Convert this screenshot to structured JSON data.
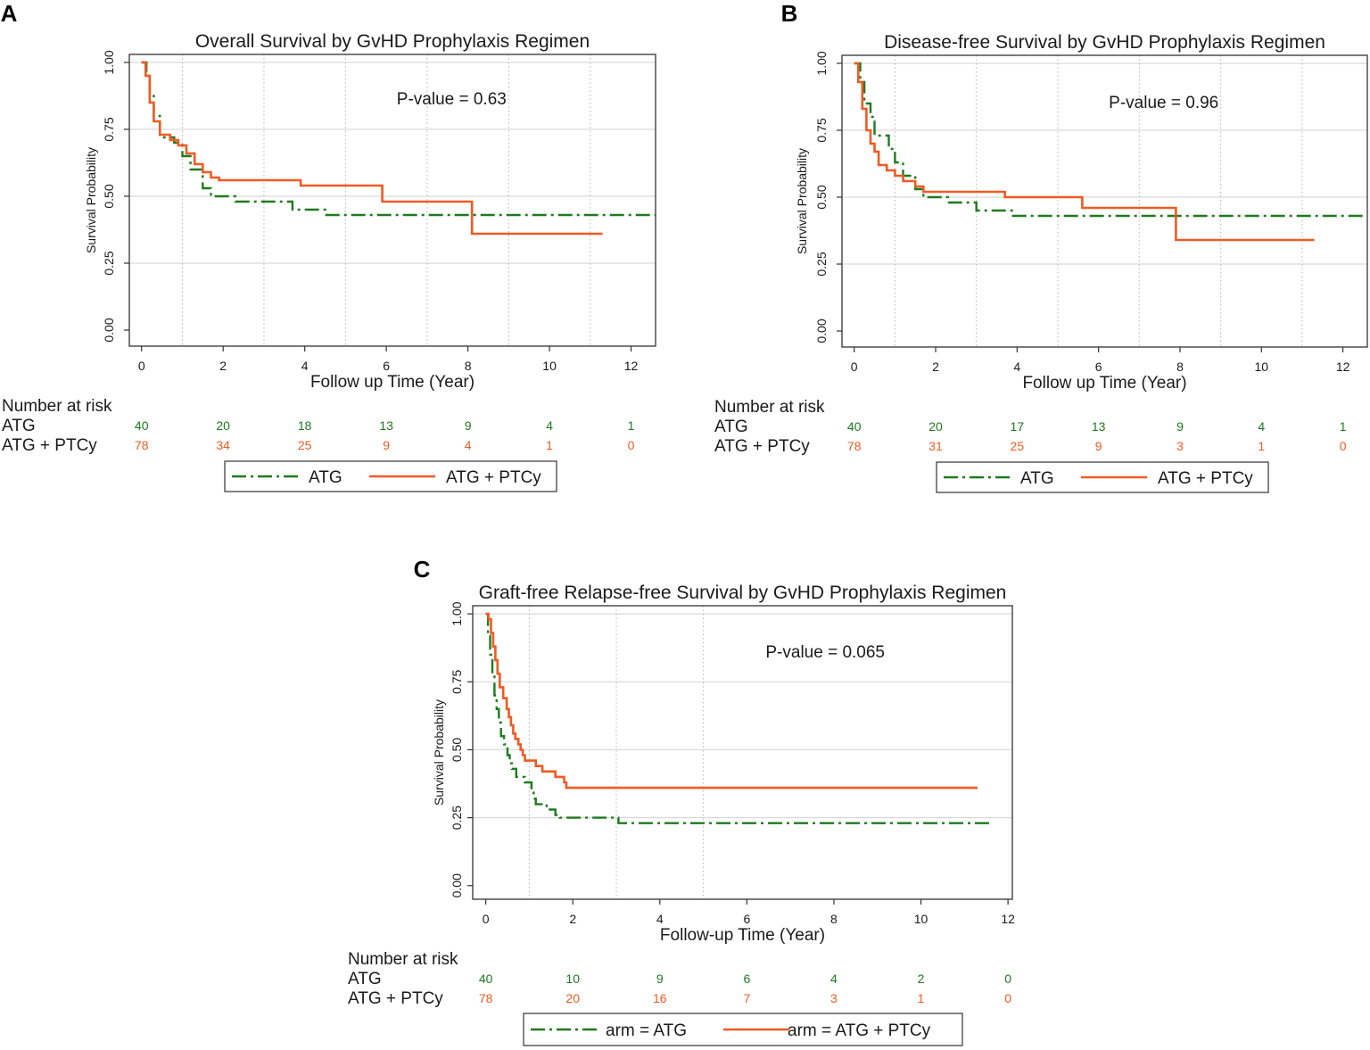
{
  "colors": {
    "atg": "#1e7a1e",
    "ptcy": "#f05a22",
    "grid": "#d9d9d9",
    "text": "#1a1a1a"
  },
  "risk_header": "Number at risk",
  "chart_data": [
    {
      "panel_label": "A",
      "type": "line",
      "title": "Overall Survival by GvHD Prophylaxis Regimen",
      "xlabel": "Follow up Time (Year)",
      "ylabel": "Survival Probability",
      "annotation": "P-value = 0.63",
      "xlim": [
        -0.3,
        12.6
      ],
      "ylim": [
        -0.06,
        1.03
      ],
      "xticks": [
        0,
        2,
        4,
        6,
        8,
        10,
        12
      ],
      "yticks": [
        0,
        0.25,
        0.5,
        0.75,
        1
      ],
      "ytick_labels": [
        "0.00",
        "0.25",
        "0.50",
        "0.75",
        "1.00"
      ],
      "vgrid": [
        1,
        3,
        5,
        7,
        9,
        11
      ],
      "series": [
        {
          "name": "ATG",
          "legend": "ATG",
          "style": "dashdot",
          "points": [
            [
              0,
              1
            ],
            [
              0.12,
              1
            ],
            [
              0.12,
              0.95
            ],
            [
              0.2,
              0.95
            ],
            [
              0.2,
              0.88
            ],
            [
              0.3,
              0.88
            ],
            [
              0.3,
              0.8
            ],
            [
              0.45,
              0.8
            ],
            [
              0.45,
              0.72
            ],
            [
              0.8,
              0.72
            ],
            [
              0.8,
              0.7
            ],
            [
              1.0,
              0.7
            ],
            [
              1.0,
              0.65
            ],
            [
              1.2,
              0.65
            ],
            [
              1.2,
              0.6
            ],
            [
              1.5,
              0.6
            ],
            [
              1.5,
              0.53
            ],
            [
              1.7,
              0.53
            ],
            [
              1.7,
              0.5
            ],
            [
              2.3,
              0.5
            ],
            [
              2.3,
              0.48
            ],
            [
              3.7,
              0.48
            ],
            [
              3.7,
              0.45
            ],
            [
              4.5,
              0.45
            ],
            [
              4.5,
              0.43
            ],
            [
              12.6,
              0.43
            ]
          ],
          "risk": [
            40,
            20,
            18,
            13,
            9,
            4,
            1
          ]
        },
        {
          "name": "ATG + PTCy",
          "legend": "ATG + PTCy",
          "style": "solid",
          "points": [
            [
              0,
              1
            ],
            [
              0.1,
              1
            ],
            [
              0.1,
              0.95
            ],
            [
              0.2,
              0.95
            ],
            [
              0.2,
              0.85
            ],
            [
              0.3,
              0.85
            ],
            [
              0.3,
              0.78
            ],
            [
              0.45,
              0.78
            ],
            [
              0.45,
              0.73
            ],
            [
              0.7,
              0.73
            ],
            [
              0.7,
              0.71
            ],
            [
              0.9,
              0.71
            ],
            [
              0.9,
              0.69
            ],
            [
              1.1,
              0.69
            ],
            [
              1.1,
              0.66
            ],
            [
              1.3,
              0.66
            ],
            [
              1.3,
              0.62
            ],
            [
              1.5,
              0.62
            ],
            [
              1.5,
              0.59
            ],
            [
              1.7,
              0.59
            ],
            [
              1.7,
              0.57
            ],
            [
              1.9,
              0.57
            ],
            [
              1.9,
              0.56
            ],
            [
              3.9,
              0.56
            ],
            [
              3.9,
              0.54
            ],
            [
              5.9,
              0.54
            ],
            [
              5.9,
              0.48
            ],
            [
              8.1,
              0.48
            ],
            [
              8.1,
              0.36
            ],
            [
              11.3,
              0.36
            ]
          ],
          "risk": [
            78,
            34,
            25,
            9,
            4,
            1,
            0
          ]
        }
      ]
    },
    {
      "panel_label": "B",
      "type": "line",
      "title": "Disease-free Survival by GvHD Prophylaxis Regimen",
      "xlabel": "Follow up Time (Year)",
      "ylabel": "Survival Probability",
      "annotation": "P-value = 0.96",
      "xlim": [
        -0.3,
        12.6
      ],
      "ylim": [
        -0.06,
        1.03
      ],
      "xticks": [
        0,
        2,
        4,
        6,
        8,
        10,
        12
      ],
      "yticks": [
        0,
        0.25,
        0.5,
        0.75,
        1
      ],
      "ytick_labels": [
        "0.00",
        "0.25",
        "0.50",
        "0.75",
        "1.00"
      ],
      "vgrid": [
        1,
        3,
        5,
        7,
        9,
        11
      ],
      "series": [
        {
          "name": "ATG",
          "legend": "ATG",
          "style": "dashdot",
          "points": [
            [
              0,
              1
            ],
            [
              0.15,
              1
            ],
            [
              0.15,
              0.93
            ],
            [
              0.25,
              0.93
            ],
            [
              0.25,
              0.85
            ],
            [
              0.4,
              0.85
            ],
            [
              0.4,
              0.8
            ],
            [
              0.5,
              0.8
            ],
            [
              0.5,
              0.73
            ],
            [
              0.85,
              0.73
            ],
            [
              0.85,
              0.68
            ],
            [
              1.0,
              0.68
            ],
            [
              1.0,
              0.63
            ],
            [
              1.2,
              0.63
            ],
            [
              1.2,
              0.58
            ],
            [
              1.5,
              0.58
            ],
            [
              1.5,
              0.53
            ],
            [
              1.7,
              0.53
            ],
            [
              1.7,
              0.5
            ],
            [
              2.3,
              0.5
            ],
            [
              2.3,
              0.48
            ],
            [
              3.0,
              0.48
            ],
            [
              3.0,
              0.45
            ],
            [
              3.9,
              0.45
            ],
            [
              3.9,
              0.43
            ],
            [
              12.6,
              0.43
            ]
          ],
          "risk": [
            40,
            20,
            17,
            13,
            9,
            4,
            1
          ]
        },
        {
          "name": "ATG + PTCy",
          "legend": "ATG + PTCy",
          "style": "solid",
          "points": [
            [
              0,
              1
            ],
            [
              0.1,
              1
            ],
            [
              0.1,
              0.93
            ],
            [
              0.2,
              0.93
            ],
            [
              0.2,
              0.83
            ],
            [
              0.3,
              0.83
            ],
            [
              0.3,
              0.75
            ],
            [
              0.4,
              0.75
            ],
            [
              0.4,
              0.7
            ],
            [
              0.5,
              0.7
            ],
            [
              0.5,
              0.67
            ],
            [
              0.6,
              0.67
            ],
            [
              0.6,
              0.62
            ],
            [
              0.8,
              0.62
            ],
            [
              0.8,
              0.6
            ],
            [
              1.0,
              0.6
            ],
            [
              1.0,
              0.58
            ],
            [
              1.2,
              0.58
            ],
            [
              1.2,
              0.56
            ],
            [
              1.5,
              0.56
            ],
            [
              1.5,
              0.54
            ],
            [
              1.7,
              0.54
            ],
            [
              1.7,
              0.52
            ],
            [
              3.7,
              0.52
            ],
            [
              3.7,
              0.5
            ],
            [
              5.6,
              0.5
            ],
            [
              5.6,
              0.46
            ],
            [
              7.9,
              0.46
            ],
            [
              7.9,
              0.34
            ],
            [
              11.3,
              0.34
            ]
          ],
          "risk": [
            78,
            31,
            25,
            9,
            3,
            1,
            0
          ]
        }
      ]
    },
    {
      "panel_label": "C",
      "type": "line",
      "title": "Graft-free Relapse-free Survival by GvHD Prophylaxis Regimen",
      "xlabel": "Follow-up Time (Year)",
      "ylabel": "Survival Probability",
      "annotation": "P-value = 0.065",
      "xlim": [
        -0.3,
        12.1
      ],
      "ylim": [
        -0.05,
        1.03
      ],
      "xticks": [
        0,
        2,
        4,
        6,
        8,
        10,
        12
      ],
      "yticks": [
        0,
        0.25,
        0.5,
        0.75,
        1
      ],
      "ytick_labels": [
        "0.00",
        "0.25",
        "0.50",
        "0.75",
        "1.00"
      ],
      "vgrid": [
        1,
        3,
        5
      ],
      "series": [
        {
          "name": "ATG",
          "legend": "arm = ATG",
          "style": "dashdot",
          "points": [
            [
              0,
              1
            ],
            [
              0.05,
              1
            ],
            [
              0.05,
              0.92
            ],
            [
              0.1,
              0.92
            ],
            [
              0.1,
              0.85
            ],
            [
              0.15,
              0.85
            ],
            [
              0.15,
              0.78
            ],
            [
              0.2,
              0.78
            ],
            [
              0.2,
              0.7
            ],
            [
              0.25,
              0.7
            ],
            [
              0.25,
              0.65
            ],
            [
              0.3,
              0.65
            ],
            [
              0.3,
              0.6
            ],
            [
              0.35,
              0.6
            ],
            [
              0.35,
              0.55
            ],
            [
              0.42,
              0.55
            ],
            [
              0.42,
              0.52
            ],
            [
              0.5,
              0.52
            ],
            [
              0.5,
              0.48
            ],
            [
              0.55,
              0.48
            ],
            [
              0.55,
              0.45
            ],
            [
              0.6,
              0.45
            ],
            [
              0.6,
              0.43
            ],
            [
              0.7,
              0.43
            ],
            [
              0.7,
              0.4
            ],
            [
              0.9,
              0.4
            ],
            [
              0.9,
              0.38
            ],
            [
              1.05,
              0.38
            ],
            [
              1.05,
              0.35
            ],
            [
              1.1,
              0.35
            ],
            [
              1.1,
              0.32
            ],
            [
              1.15,
              0.32
            ],
            [
              1.15,
              0.3
            ],
            [
              1.4,
              0.3
            ],
            [
              1.4,
              0.28
            ],
            [
              1.6,
              0.28
            ],
            [
              1.6,
              0.26
            ],
            [
              1.7,
              0.26
            ],
            [
              1.7,
              0.25
            ],
            [
              3.05,
              0.25
            ],
            [
              3.05,
              0.23
            ],
            [
              11.6,
              0.23
            ]
          ],
          "risk": [
            40,
            10,
            9,
            6,
            4,
            2,
            0
          ]
        },
        {
          "name": "ATG + PTCy",
          "legend": "arm = ATG + PTCy",
          "style": "solid",
          "points": [
            [
              0,
              1
            ],
            [
              0.06,
              1
            ],
            [
              0.06,
              0.98
            ],
            [
              0.12,
              0.98
            ],
            [
              0.12,
              0.93
            ],
            [
              0.17,
              0.93
            ],
            [
              0.17,
              0.88
            ],
            [
              0.22,
              0.88
            ],
            [
              0.22,
              0.83
            ],
            [
              0.27,
              0.83
            ],
            [
              0.27,
              0.78
            ],
            [
              0.32,
              0.78
            ],
            [
              0.32,
              0.73
            ],
            [
              0.4,
              0.73
            ],
            [
              0.4,
              0.69
            ],
            [
              0.48,
              0.69
            ],
            [
              0.48,
              0.65
            ],
            [
              0.53,
              0.65
            ],
            [
              0.53,
              0.62
            ],
            [
              0.58,
              0.62
            ],
            [
              0.58,
              0.59
            ],
            [
              0.63,
              0.59
            ],
            [
              0.63,
              0.56
            ],
            [
              0.68,
              0.56
            ],
            [
              0.68,
              0.54
            ],
            [
              0.75,
              0.54
            ],
            [
              0.75,
              0.52
            ],
            [
              0.8,
              0.52
            ],
            [
              0.8,
              0.5
            ],
            [
              0.85,
              0.5
            ],
            [
              0.85,
              0.48
            ],
            [
              0.9,
              0.48
            ],
            [
              0.9,
              0.46
            ],
            [
              1.15,
              0.46
            ],
            [
              1.15,
              0.44
            ],
            [
              1.3,
              0.44
            ],
            [
              1.3,
              0.42
            ],
            [
              1.6,
              0.42
            ],
            [
              1.6,
              0.4
            ],
            [
              1.8,
              0.4
            ],
            [
              1.8,
              0.38
            ],
            [
              1.85,
              0.38
            ],
            [
              1.85,
              0.36
            ],
            [
              11.3,
              0.36
            ]
          ],
          "risk": [
            78,
            20,
            16,
            7,
            3,
            1,
            0
          ]
        }
      ]
    }
  ]
}
